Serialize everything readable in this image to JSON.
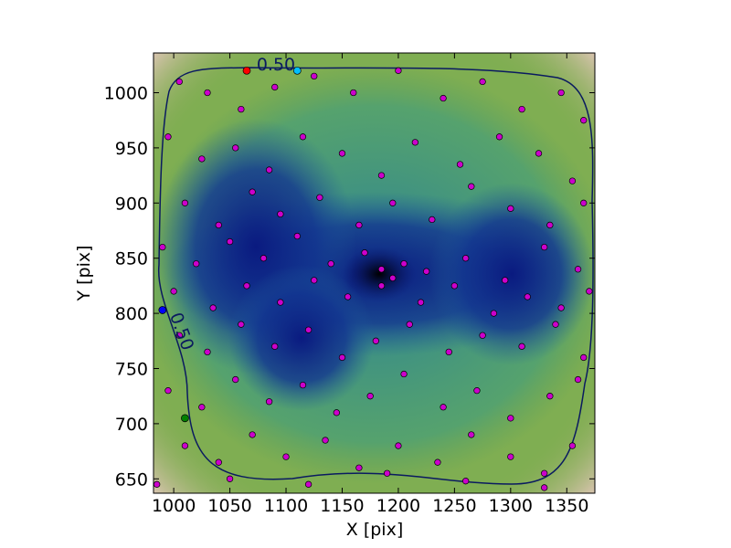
{
  "chart_data": {
    "type": "scatter",
    "xlabel": "X [pix]",
    "ylabel": "Y [pix]",
    "xlim": [
      982,
      1375
    ],
    "ylim": [
      637,
      1036
    ],
    "xticks": [
      1000,
      1050,
      1100,
      1150,
      1200,
      1250,
      1300,
      1350
    ],
    "yticks": [
      650,
      700,
      750,
      800,
      850,
      900,
      950,
      1000
    ],
    "annotations": [
      "0.50",
      "0.50"
    ],
    "series": [
      {
        "color": "#cc00cc",
        "x": [
          1005,
          1030,
          1060,
          1090,
          1125,
          1160,
          1200,
          1240,
          1275,
          1310,
          1345,
          1365,
          995,
          1025,
          1055,
          1085,
          1115,
          1150,
          1185,
          1215,
          1255,
          1290,
          1325,
          1355,
          1010,
          1040,
          1070,
          1095,
          1130,
          1165,
          1195,
          1230,
          1265,
          1300,
          1335,
          1365,
          990,
          1020,
          1050,
          1080,
          1110,
          1140,
          1170,
          1185,
          1195,
          1205,
          1225,
          1260,
          1295,
          1330,
          1360,
          1000,
          1035,
          1065,
          1095,
          1125,
          1155,
          1185,
          1220,
          1250,
          1285,
          1315,
          1345,
          1370,
          1005,
          1030,
          1060,
          1090,
          1120,
          1150,
          1180,
          1210,
          1245,
          1275,
          1310,
          1340,
          1365,
          995,
          1025,
          1055,
          1085,
          1115,
          1145,
          1175,
          1205,
          1240,
          1270,
          1300,
          1335,
          1360,
          1010,
          1040,
          1070,
          1100,
          1135,
          1165,
          1200,
          1235,
          1265,
          1300,
          1330,
          1355,
          985,
          1050,
          1120,
          1190,
          1260,
          1330
        ],
        "y": [
          1010,
          1000,
          985,
          1005,
          1015,
          1000,
          1020,
          995,
          1010,
          985,
          1000,
          975,
          960,
          940,
          950,
          930,
          960,
          945,
          925,
          955,
          935,
          960,
          945,
          920,
          900,
          880,
          910,
          890,
          905,
          880,
          900,
          885,
          915,
          895,
          880,
          900,
          860,
          845,
          865,
          850,
          870,
          845,
          855,
          840,
          832,
          845,
          838,
          850,
          830,
          860,
          840,
          820,
          805,
          825,
          810,
          830,
          815,
          825,
          810,
          825,
          800,
          815,
          805,
          820,
          780,
          765,
          790,
          770,
          785,
          760,
          775,
          790,
          765,
          780,
          770,
          790,
          760,
          730,
          715,
          740,
          720,
          735,
          710,
          725,
          745,
          715,
          730,
          705,
          725,
          740,
          680,
          665,
          690,
          670,
          685,
          660,
          680,
          665,
          690,
          670,
          655,
          680,
          645,
          650,
          645,
          655,
          648,
          642
        ]
      },
      {
        "colors": [
          "#ff0000",
          "#00bfff",
          "#0000ff",
          "#008000"
        ],
        "x": [
          1065,
          1110,
          990,
          1010
        ],
        "y": [
          1020,
          1020,
          803,
          705
        ]
      }
    ]
  }
}
